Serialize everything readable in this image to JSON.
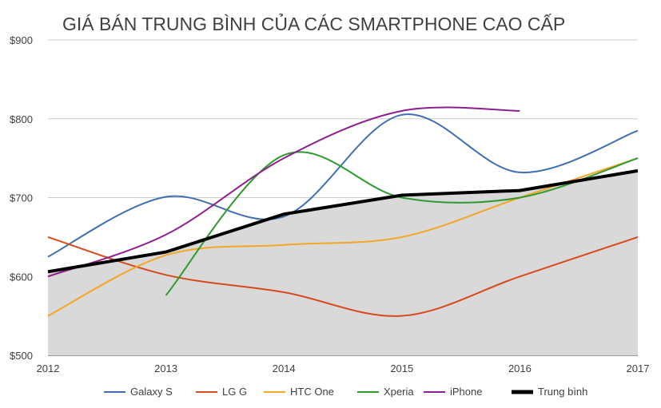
{
  "chart_data": {
    "type": "line",
    "title": "GIÁ BÁN TRUNG BÌNH CỦA CÁC SMARTPHONE CAO CẤP",
    "x": [
      2012,
      2013,
      2014,
      2015,
      2016,
      2017
    ],
    "x_tick_labels": [
      "2012",
      "2013",
      "2014",
      "2015",
      "2016",
      "2017"
    ],
    "y_tick_labels": [
      "$500",
      "$600",
      "$700",
      "$800",
      "$900"
    ],
    "y_ticks": [
      500,
      600,
      700,
      800,
      900
    ],
    "ylim": [
      500,
      900
    ],
    "grid": true,
    "legend_position": "bottom",
    "series": [
      {
        "name": "Galaxy S",
        "color": "#3e6fb0",
        "points": [
          [
            2012,
            625
          ],
          [
            2013,
            701
          ],
          [
            2014,
            676
          ],
          [
            2015,
            805
          ],
          [
            2016,
            732
          ],
          [
            2017,
            785
          ]
        ]
      },
      {
        "name": "LG G",
        "color": "#d84a1b",
        "points": [
          [
            2012,
            650
          ],
          [
            2013,
            602
          ],
          [
            2014,
            580
          ],
          [
            2015,
            550
          ],
          [
            2016,
            600
          ],
          [
            2017,
            650
          ]
        ]
      },
      {
        "name": "HTC One",
        "color": "#f5a623",
        "points": [
          [
            2012,
            550
          ],
          [
            2013,
            627
          ],
          [
            2014,
            640
          ],
          [
            2015,
            650
          ],
          [
            2016,
            700
          ],
          [
            2017,
            750
          ]
        ]
      },
      {
        "name": "Xperia",
        "color": "#2f9a2f",
        "points": [
          [
            2013,
            576
          ],
          [
            2014,
            754
          ],
          [
            2015,
            700
          ],
          [
            2016,
            700
          ],
          [
            2017,
            750
          ]
        ]
      },
      {
        "name": "iPhone",
        "color": "#8e1f8e",
        "points": [
          [
            2012,
            600
          ],
          [
            2013,
            653
          ],
          [
            2014,
            750
          ],
          [
            2015,
            810
          ],
          [
            2016,
            810
          ]
        ]
      }
    ],
    "average": {
      "name": "Trung bình",
      "color": "#000000",
      "fill": "#d9d9d9",
      "points": [
        [
          2012,
          606
        ],
        [
          2013,
          631
        ],
        [
          2014,
          679
        ],
        [
          2015,
          703
        ],
        [
          2016,
          709
        ],
        [
          2017,
          734
        ]
      ]
    }
  }
}
